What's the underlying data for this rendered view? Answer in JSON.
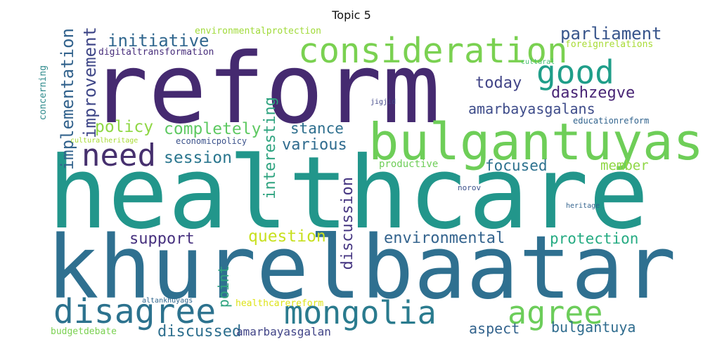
{
  "title": "Topic 5",
  "words": {
    "healthcare": "healthcare",
    "khurelbaatar": "khurelbaatar",
    "reform": "reform",
    "bulgantuyas": "bulgantuyas",
    "consideration": "consideration",
    "disagree": "disagree",
    "mongolia": "mongolia",
    "agree": "agree",
    "good": "good",
    "need": "need",
    "initiative": "initiative",
    "parliament": "parliament",
    "improvement": "improvement",
    "implementation": "implementation",
    "interesting": "interesting",
    "discussion": "discussion",
    "policy": "policy",
    "completely": "completely",
    "stance": "stance",
    "session": "session",
    "various": "various",
    "today": "today",
    "dashzegve": "dashzegve",
    "amarbayasgalans": "amarbayasgalans",
    "focused": "focused",
    "member": "member",
    "support": "support",
    "question": "question",
    "environmental": "environmental",
    "protection": "protection",
    "point": "point",
    "discussed": "discussed",
    "aspect": "aspect",
    "bulgantuya": "bulgantuya",
    "amarbayasgalan": "amarbayasgalan",
    "environmentalprotection": "environmentalprotection",
    "digitaltransformation": "digitaltransformation",
    "foreignrelations": "foreignrelations",
    "cultural": "cultural",
    "jigjid": "jigjid",
    "concerning": "concerning",
    "culturalheritage": "culturalheritage",
    "economicpolicy": "economicpolicy",
    "educationreform": "educationreform",
    "productive": "productive",
    "norov": "norov",
    "heritage": "heritage",
    "altankhuyags": "altankhuyags",
    "healthcarereform": "healthcarereform",
    "budgetdebate": "budgetdebate"
  },
  "colors": {
    "dark_purple": "#46276b",
    "purple": "#482878",
    "teal": "#22968b",
    "dark_teal": "#2c6e8e",
    "blue": "#33668d",
    "green": "#5ec962",
    "lime": "#9fda3a",
    "yellow": "#d6e22b",
    "light_green": "#7ad151"
  }
}
